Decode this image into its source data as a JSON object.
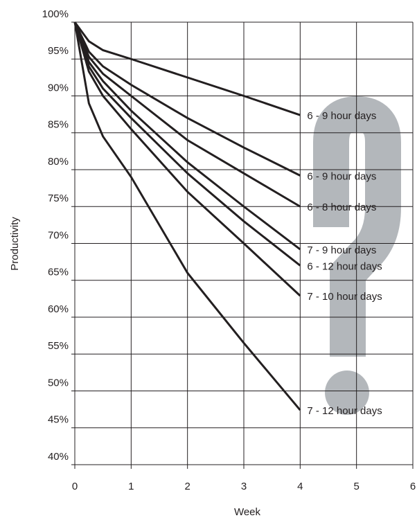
{
  "chart_data": {
    "type": "line",
    "x_label": "Week",
    "y_label": "Productivity",
    "x": [
      0,
      0.25,
      0.5,
      1,
      2,
      3,
      4
    ],
    "series": [
      {
        "name": "6 - 9 hour days",
        "color": "#231f20",
        "values": [
          100,
          97.4,
          96.2,
          95,
          92.5,
          90,
          87.4
        ]
      },
      {
        "name": "6 - 9 hour days",
        "color": "#231f20",
        "values": [
          100,
          96,
          94,
          91.5,
          87,
          83,
          79.2
        ]
      },
      {
        "name": "6 - 8 hour days",
        "color": "#231f20",
        "values": [
          100,
          95.3,
          93,
          90,
          84,
          79.5,
          75
        ]
      },
      {
        "name": "7 - 9 hour days",
        "color": "#231f20",
        "values": [
          100,
          94.6,
          92,
          88,
          81,
          75,
          69.2
        ]
      },
      {
        "name": "6 - 12 hour days",
        "color": "#231f20",
        "values": [
          100,
          94,
          91,
          87,
          79.5,
          73,
          67
        ]
      },
      {
        "name": "7 - 10 hour days",
        "color": "#231f20",
        "values": [
          100,
          93.3,
          90,
          85.5,
          77,
          70,
          62.9
        ]
      },
      {
        "name": "7 - 12 hour days",
        "color": "#231f20",
        "values": [
          100,
          89,
          84.5,
          79,
          66,
          56.5,
          47.4
        ]
      }
    ],
    "xlim": [
      0,
      6
    ],
    "xticks": [
      0,
      1,
      2,
      3,
      4,
      5,
      6
    ],
    "ylim": [
      40,
      100
    ],
    "yticks": [
      {
        "value": 40,
        "label": "40%"
      },
      {
        "value": 45,
        "label": "45%"
      },
      {
        "value": 50,
        "label": "50%"
      },
      {
        "value": 55,
        "label": "55%"
      },
      {
        "value": 60,
        "label": "60%"
      },
      {
        "value": 65,
        "label": "65%"
      },
      {
        "value": 70,
        "label": "70%"
      },
      {
        "value": 75,
        "label": "75%"
      },
      {
        "value": 80,
        "label": "80%"
      },
      {
        "value": 85,
        "label": "85%"
      },
      {
        "value": 90,
        "label": "90%"
      },
      {
        "value": 95,
        "label": "95%"
      },
      {
        "value": 100,
        "label": "100%"
      }
    ],
    "grid": true
  }
}
